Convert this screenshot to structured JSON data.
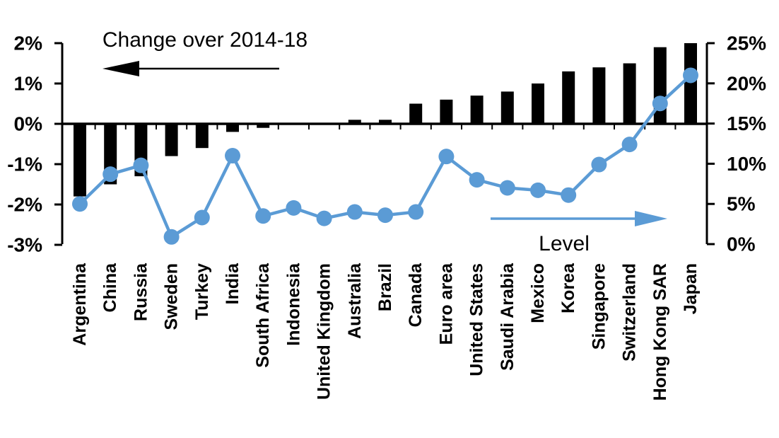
{
  "chart_data": {
    "type": "combo-bar-line",
    "title": "Change over 2014-18",
    "categories": [
      "Argentina",
      "China",
      "Russia",
      "Sweden",
      "Turkey",
      "India",
      "South Africa",
      "Indonesia",
      "United Kingdom",
      "Australia",
      "Brazil",
      "Canada",
      "Euro area",
      "United States",
      "Saudi Arabia",
      "Mexico",
      "Korea",
      "Singapore",
      "Switzerland",
      "Hong Kong SAR",
      "Japan"
    ],
    "series": [
      {
        "name": "Change over 2014-18",
        "type": "bar",
        "axis": "left",
        "color": "#000000",
        "values": [
          -1.8,
          -1.5,
          -1.3,
          -0.8,
          -0.6,
          -0.2,
          -0.1,
          0.0,
          0.0,
          0.1,
          0.1,
          0.5,
          0.6,
          0.7,
          0.8,
          1.0,
          1.3,
          1.4,
          1.5,
          1.9,
          2.0
        ]
      },
      {
        "name": "Level",
        "type": "line",
        "axis": "right",
        "color": "#5B9BD5",
        "values": [
          5.0,
          8.7,
          9.8,
          0.9,
          3.3,
          11.0,
          3.5,
          4.5,
          3.2,
          4.0,
          3.6,
          4.0,
          10.9,
          8.0,
          7.0,
          6.7,
          6.1,
          9.9,
          12.4,
          17.5,
          21.0
        ]
      }
    ],
    "left_axis": {
      "min": -3,
      "max": 2,
      "tick_values": [
        2,
        1,
        0,
        -1,
        -2,
        -3
      ],
      "tick_labels": [
        "2%",
        "1%",
        "0%",
        "-1%",
        "-2%",
        "-3%"
      ]
    },
    "right_axis": {
      "min": 0,
      "max": 25,
      "tick_values": [
        25,
        20,
        15,
        10,
        5,
        0
      ],
      "tick_labels": [
        "25%",
        "20%",
        "15%",
        "10%",
        "5%",
        "0%"
      ]
    },
    "annotations": {
      "bar_label": {
        "text": "Change over 2014-18",
        "arrow_direction": "left",
        "arrow_color": "#000000"
      },
      "line_label": {
        "text": "Level",
        "arrow_direction": "right",
        "arrow_color": "#5B9BD5"
      }
    },
    "grid": false,
    "legend_position": "none (in-plot labels with arrows)",
    "colors": {
      "background": "#FFFFFF",
      "text": "#000000",
      "bar": "#000000",
      "line": "#5B9BD5"
    }
  }
}
